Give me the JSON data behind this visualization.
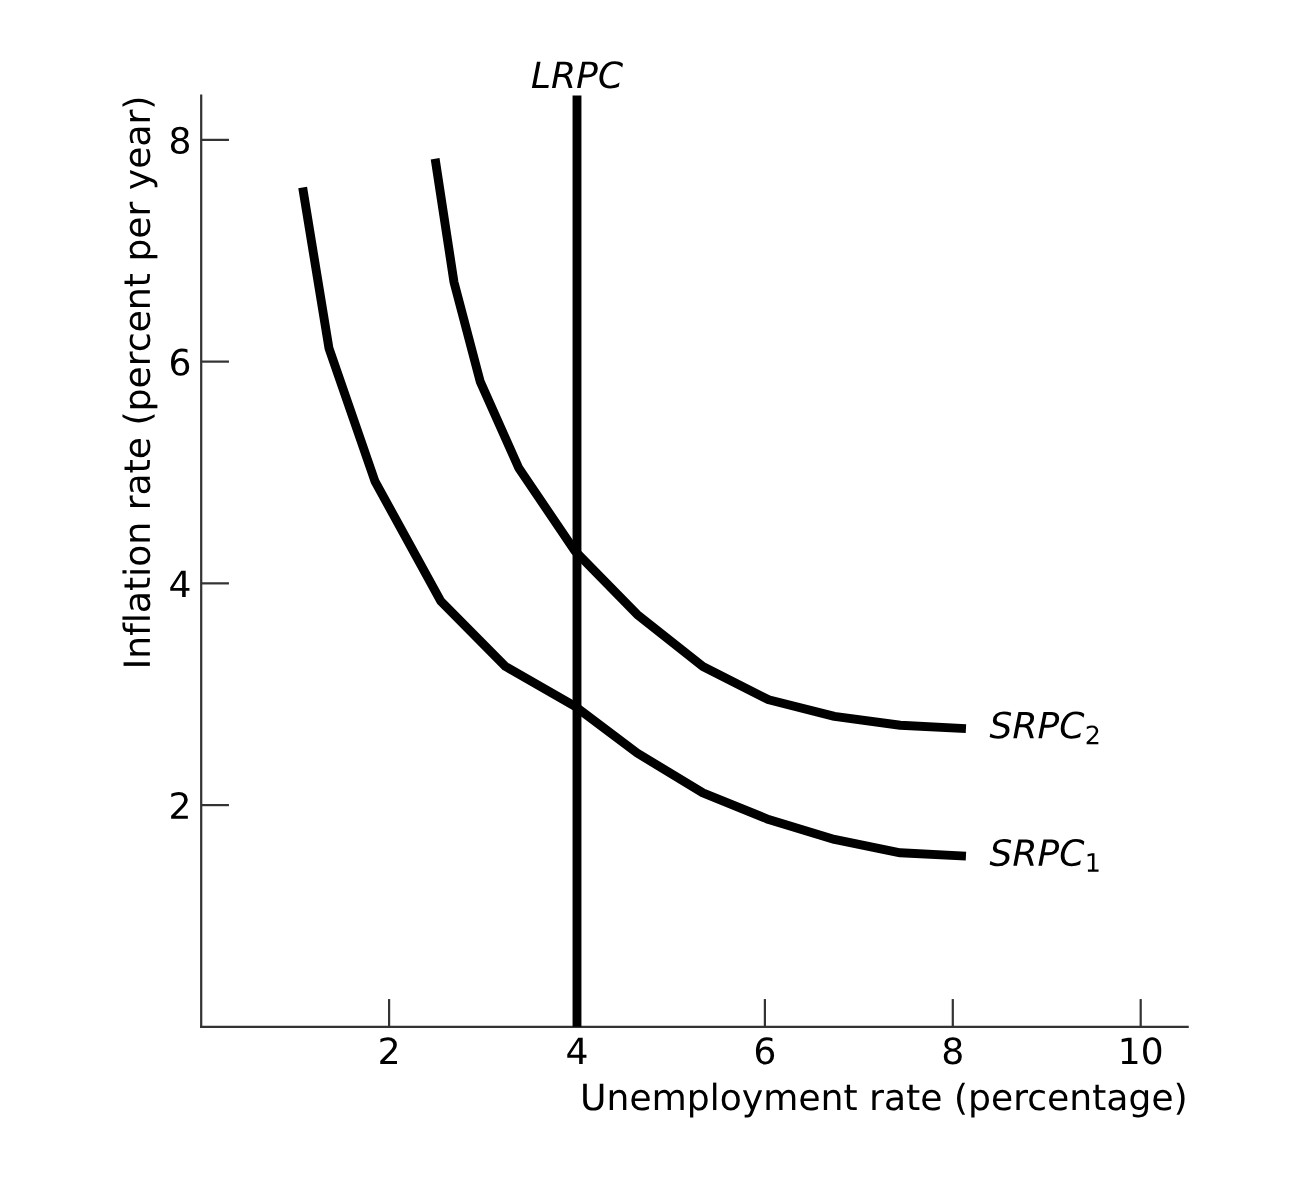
{
  "chart_data": {
    "type": "line",
    "xlabel": "Unemployment rate (percentage)",
    "ylabel": "Inflation rate (percent per year)",
    "xlim": [
      0,
      10.5
    ],
    "ylim": [
      0,
      8.4
    ],
    "xticks": [
      2,
      4,
      6,
      8,
      10
    ],
    "yticks": [
      2,
      4,
      6,
      8
    ],
    "marker": "none",
    "line_style": "solid",
    "ref_lines": [
      {
        "axis": "x",
        "value": 4,
        "label": "LRPC",
        "color": "#000000"
      }
    ],
    "series": [
      {
        "name": "SRPC$_{1}$",
        "color": "#000000",
        "x": [
          1.08,
          1.36,
          1.85,
          2.55,
          3.24,
          3.98,
          4.64,
          5.34,
          6.04,
          6.74,
          7.44,
          8.14
        ],
        "values": [
          7.57,
          6.12,
          4.92,
          3.84,
          3.25,
          2.89,
          2.47,
          2.11,
          1.87,
          1.69,
          1.57,
          1.54
        ]
      },
      {
        "name": "SRPC$_{2}$",
        "color": "#000000",
        "x": [
          2.49,
          2.69,
          2.97,
          3.38,
          3.98,
          4.64,
          5.34,
          6.04,
          6.74,
          7.44,
          8.14
        ],
        "values": [
          7.83,
          6.72,
          5.82,
          5.04,
          4.29,
          3.72,
          3.25,
          2.95,
          2.8,
          2.72,
          2.69
        ]
      }
    ]
  }
}
